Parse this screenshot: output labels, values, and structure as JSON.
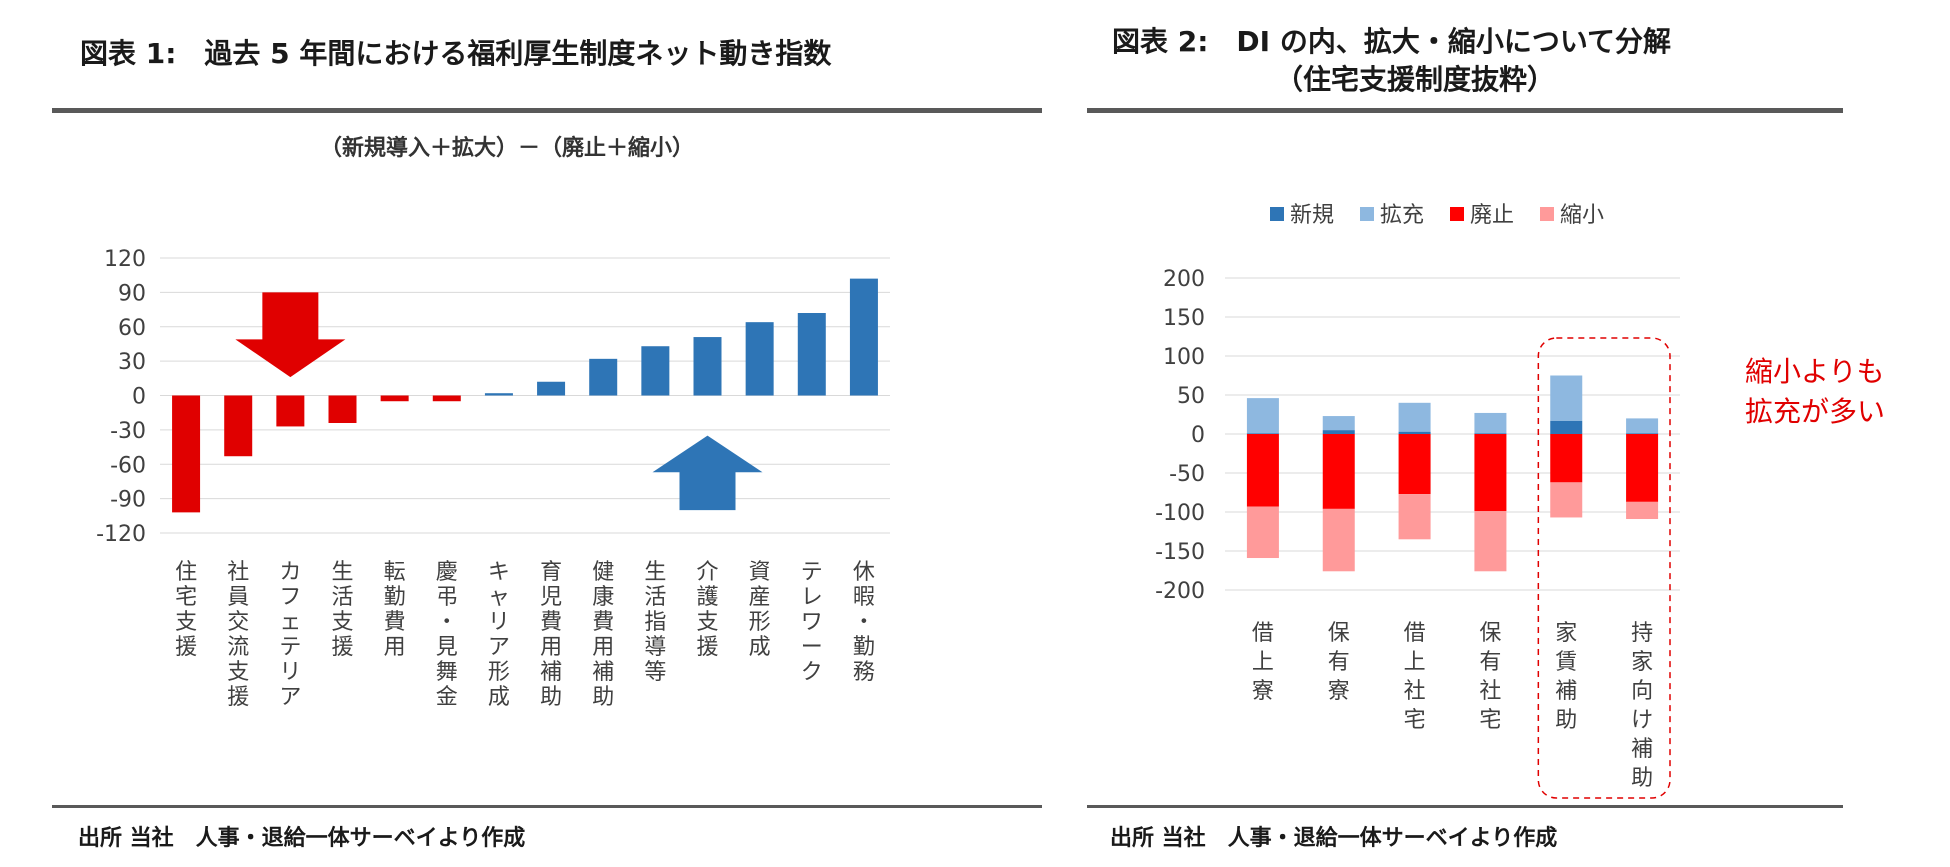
{
  "left": {
    "title": "図表 1:　過去 5 年間における福利厚生制度ネット動き指数",
    "subtitle": "（新規導入＋拡大）－（廃止＋縮小）",
    "source": "出所 当社　人事・退給一体サーベイより作成"
  },
  "right": {
    "title_line1": "図表 2:　DI の内、拡大・縮小について分解",
    "title_line2": "（住宅支援制度抜粋）",
    "source": "出所 当社　人事・退給一体サーベイより作成",
    "callout_line1": "縮小よりも",
    "callout_line2": "拡充が多い"
  },
  "colors": {
    "neg": "#e00000",
    "pos": "#2e75b6",
    "new": "#2e75b6",
    "expand": "#8eb8e0",
    "abolish": "#ff0000",
    "reduce": "#ff9a9a",
    "grid": "#d9d9d9",
    "axis_text": "#404040"
  },
  "chart_data": [
    {
      "type": "bar",
      "title": "（新規導入＋拡大）－（廃止＋縮小）",
      "categories": [
        "住宅支援",
        "社員交流支援",
        "カフェテリア",
        "生活支援",
        "転勤費用",
        "慶弔・見舞金",
        "キャリア形成",
        "育児費用補助",
        "健康費用補助",
        "生活指導等",
        "介護支援",
        "資産形成",
        "テレワーク",
        "休暇・勤務"
      ],
      "values": [
        -102,
        -53,
        -27,
        -24,
        -5,
        -5,
        2,
        12,
        32,
        43,
        51,
        64,
        72,
        102
      ],
      "yticks": [
        120,
        90,
        60,
        30,
        0,
        -30,
        -60,
        -90,
        -120
      ],
      "ylim": [
        -120,
        120
      ],
      "annotations": [
        "down-arrow over カフェテリア",
        "up-arrow under 介護支援"
      ]
    },
    {
      "type": "bar",
      "stacked": true,
      "categories": [
        "借上寮",
        "保有寮",
        "借上社宅",
        "保有社宅",
        "家賃補助",
        "持家向け補助"
      ],
      "series": [
        {
          "name": "新規",
          "values": [
            1,
            5,
            3,
            1,
            17,
            1
          ]
        },
        {
          "name": "拡充",
          "values": [
            45,
            18,
            37,
            26,
            58,
            19
          ]
        },
        {
          "name": "廃止",
          "values": [
            -93,
            -96,
            -77,
            -99,
            -62,
            -87
          ]
        },
        {
          "name": "縮小",
          "values": [
            -66,
            -80,
            -58,
            -77,
            -45,
            -22
          ]
        }
      ],
      "yticks": [
        200,
        150,
        100,
        50,
        0,
        -50,
        -100,
        -150,
        -200
      ],
      "ylim": [
        -200,
        200
      ],
      "legend": "top",
      "highlight": [
        "家賃補助",
        "持家向け補助"
      ]
    }
  ]
}
